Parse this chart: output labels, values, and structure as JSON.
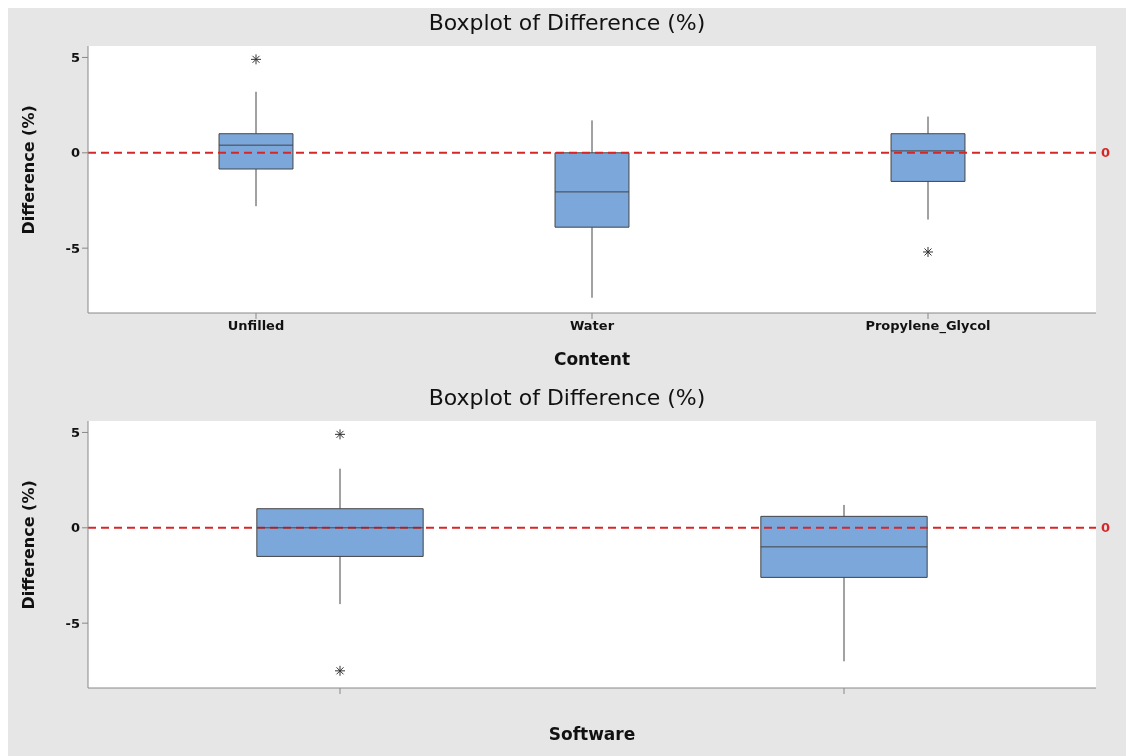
{
  "chart_data": [
    {
      "type": "box",
      "title": "Boxplot of Difference (%)",
      "xlabel": "Content",
      "ylabel": "Difference (%)",
      "categories": [
        "Unfilled",
        "Water",
        "Propylene_Glycol"
      ],
      "color": "#7ba7db",
      "ylim": [
        -8.4,
        5.6
      ],
      "yticks": [
        -5,
        0,
        5
      ],
      "marker": "star",
      "boxes": [
        {
          "low": -2.8,
          "q1": -0.85,
          "median": 0.4,
          "q3": 1.0,
          "high": 3.2,
          "outliers": [
            4.9
          ]
        },
        {
          "low": -7.6,
          "q1": -3.9,
          "median": -2.05,
          "q3": 0,
          "high": 1.7
        },
        {
          "low": -3.5,
          "q1": -1.5,
          "median": 0.1,
          "q3": 1.0,
          "high": 1.9,
          "outliers": [
            -5.2
          ]
        }
      ],
      "ref_lines": [
        {
          "axis": "y",
          "value": 0,
          "label": "0",
          "color": "#d62728",
          "line_style": "dashed"
        }
      ]
    },
    {
      "type": "box",
      "title": "Boxplot of Difference (%)",
      "xlabel": "Software",
      "ylabel": "Difference (%)",
      "categories": [
        null,
        null
      ],
      "color": "#7ba7db",
      "ylim": [
        -8.4,
        5.6
      ],
      "yticks": [
        -5,
        0,
        5
      ],
      "marker": "star",
      "boxes": [
        {
          "low": -4.0,
          "q1": -1.5,
          "median": 0,
          "q3": 1.0,
          "high": 3.1,
          "outliers": [
            4.9,
            -7.5
          ]
        },
        {
          "low": -7.0,
          "q1": -2.6,
          "median": -1.0,
          "q3": 0.6,
          "high": 1.2
        }
      ],
      "ref_lines": [
        {
          "axis": "y",
          "value": 0,
          "label": "0",
          "color": "#d62728",
          "line_style": "dashed"
        }
      ]
    }
  ]
}
